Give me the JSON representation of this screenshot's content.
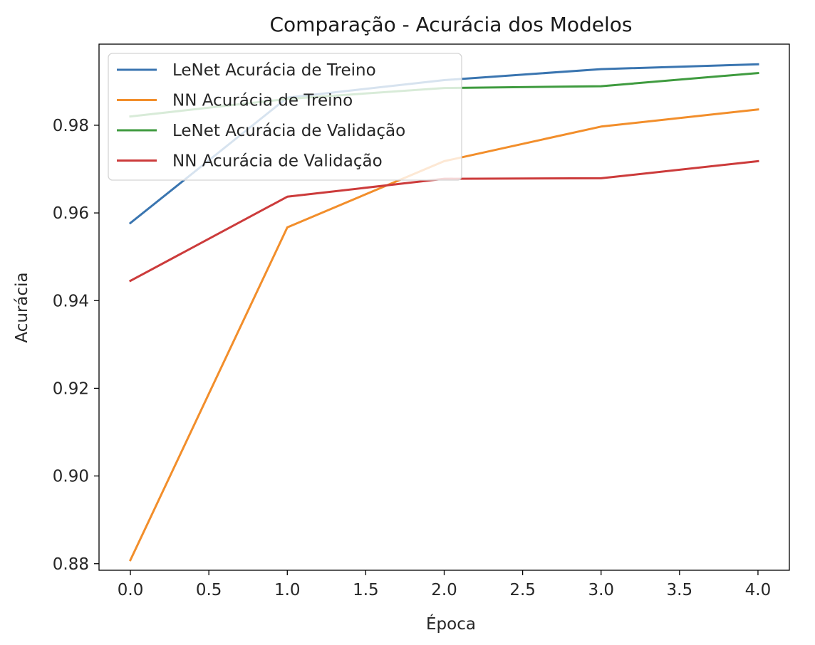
{
  "chart_data": {
    "type": "line",
    "title": "Comparação - Acurácia dos Modelos",
    "xlabel": "Época",
    "ylabel": "Acurácia",
    "x": [
      0,
      1,
      2,
      3,
      4
    ],
    "xlim": [
      -0.2,
      4.2
    ],
    "ylim": [
      0.8785,
      0.9985
    ],
    "xticks": [
      "0.0",
      "0.5",
      "1.0",
      "1.5",
      "2.0",
      "2.5",
      "3.0",
      "3.5",
      "4.0"
    ],
    "yticks": [
      "0.88",
      "0.90",
      "0.92",
      "0.94",
      "0.96",
      "0.98"
    ],
    "grid": false,
    "legend_position": "top-left",
    "series": [
      {
        "name": "LeNet Acurácia de Treino",
        "color": "#3a75b0",
        "values": [
          0.9577,
          0.9863,
          0.9903,
          0.9928,
          0.9939
        ]
      },
      {
        "name": "NN Acurácia de Treino",
        "color": "#f28e2b",
        "values": [
          0.8808,
          0.9567,
          0.9718,
          0.9797,
          0.9836
        ]
      },
      {
        "name": "LeNet Acurácia de Validação",
        "color": "#3f9b3f",
        "values": [
          0.982,
          0.986,
          0.9885,
          0.9889,
          0.9919
        ]
      },
      {
        "name": "NN Acurácia de Validação",
        "color": "#cc3b3b",
        "values": [
          0.9445,
          0.9637,
          0.9678,
          0.9679,
          0.9718
        ]
      }
    ]
  }
}
